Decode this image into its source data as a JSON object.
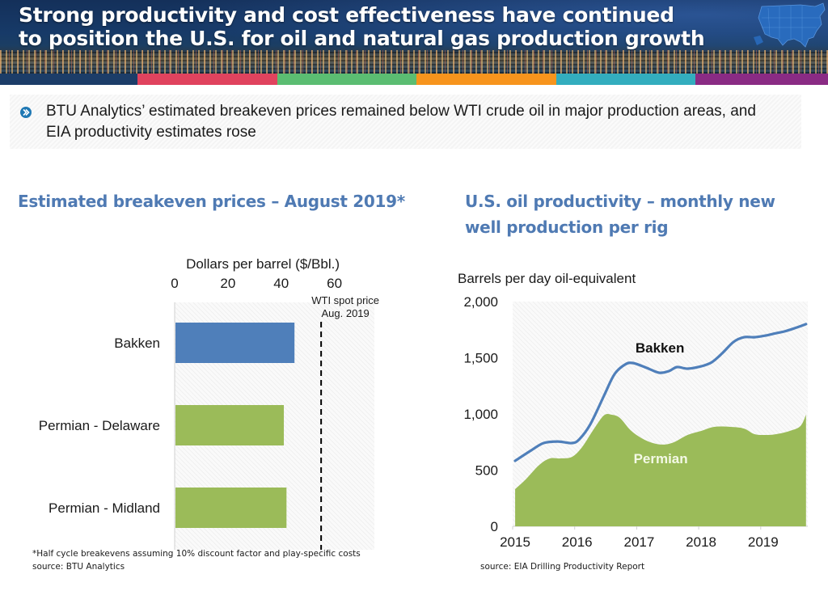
{
  "header": {
    "title_line1": "Strong productivity and cost effectiveness have continued",
    "title_line2": "to position the U.S. for oil and natural gas production growth",
    "map_icon": "us-map-icon",
    "color_bar": [
      "#1c3d68",
      "#e0435e",
      "#5bbd72",
      "#f7941d",
      "#33adbe",
      "#8a2b84"
    ]
  },
  "bullet": {
    "icon": "chevron-right-circle-icon",
    "icon_color": "#1f78b4",
    "text": "BTU Analytics’ estimated breakeven prices remained below WTI crude oil in major production areas, and EIA productivity estimates rose"
  },
  "left_section": {
    "title": "Estimated breakeven prices – August  2019*",
    "footnote": "*Half cycle breakevens assuming 10% discount factor and play-specific costs",
    "source": "source:  BTU Analytics"
  },
  "right_section": {
    "title": "U.S. oil productivity – monthly new well production per rig",
    "source": "source:  EIA Drilling Productivity Report"
  },
  "chart_data": [
    {
      "type": "bar",
      "orientation": "horizontal",
      "title": "Estimated breakeven prices – August  2019*",
      "xlabel": "Dollars per barrel ($/Bbl.)",
      "ylabel": "",
      "xlim": [
        0,
        75
      ],
      "xticks": [
        0,
        20,
        40,
        60
      ],
      "xtick_labels": [
        "0",
        "20",
        "40",
        "60"
      ],
      "x_axis_position": "top",
      "grid": false,
      "categories": [
        "Bakken",
        "Permian - Delaware",
        "Permian - Midland"
      ],
      "values": [
        45,
        41,
        42
      ],
      "colors": [
        "#4f7fba",
        "#9bbb59",
        "#9bbb59"
      ],
      "reference_line": {
        "value": 55,
        "label_line1": "WTI spot price",
        "label_line2": "Aug. 2019",
        "style": "dashed",
        "color": "#000000"
      }
    },
    {
      "type": "area",
      "title": "U.S. oil productivity – monthly new well production per rig",
      "ylabel": "Barrels per day oil-equivalent",
      "xlabel": "",
      "ylim": [
        0,
        2000
      ],
      "yticks": [
        0,
        500,
        1000,
        1500,
        2000
      ],
      "ytick_labels": [
        "0",
        "500",
        "1,000",
        "1,500",
        "2,000"
      ],
      "xlim": [
        2015,
        2019.75
      ],
      "xticks": [
        2015,
        2016,
        2017,
        2018,
        2019
      ],
      "xtick_labels": [
        "2015",
        "2016",
        "2017",
        "2018",
        "2019"
      ],
      "grid": false,
      "series": [
        {
          "name": "Bakken",
          "kind": "line",
          "color": "#4f7fba",
          "label": "Bakken",
          "x": [
            2015.04,
            2015.3,
            2015.5,
            2015.73,
            2015.96,
            2016.08,
            2016.25,
            2016.47,
            2016.64,
            2016.81,
            2016.94,
            2017.16,
            2017.36,
            2017.52,
            2017.65,
            2017.82,
            2018.04,
            2018.21,
            2018.38,
            2018.56,
            2018.73,
            2018.9,
            2019.08,
            2019.25,
            2019.38,
            2019.55,
            2019.73
          ],
          "y": [
            583,
            676,
            741,
            755,
            741,
            777,
            906,
            1158,
            1352,
            1439,
            1453,
            1410,
            1367,
            1381,
            1417,
            1403,
            1424,
            1460,
            1540,
            1640,
            1683,
            1683,
            1698,
            1719,
            1734,
            1763,
            1799
          ]
        },
        {
          "name": "Permian",
          "kind": "area",
          "color": "#9bbb59",
          "label": "Permian",
          "x": [
            2015.04,
            2015.21,
            2015.43,
            2015.6,
            2015.77,
            2015.96,
            2016.12,
            2016.29,
            2016.47,
            2016.6,
            2016.73,
            2016.9,
            2017.08,
            2017.26,
            2017.43,
            2017.6,
            2017.82,
            2018.04,
            2018.25,
            2018.51,
            2018.73,
            2018.9,
            2019.08,
            2019.25,
            2019.47,
            2019.64,
            2019.73
          ],
          "y": [
            331,
            417,
            547,
            604,
            604,
            619,
            705,
            849,
            986,
            993,
            964,
            856,
            784,
            741,
            727,
            748,
            813,
            849,
            885,
            885,
            870,
            820,
            813,
            820,
            849,
            892,
            993
          ]
        }
      ]
    }
  ]
}
